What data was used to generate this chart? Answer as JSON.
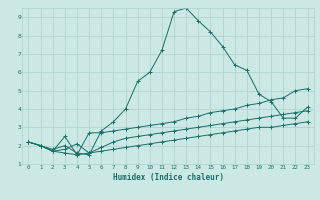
{
  "xlabel": "Humidex (Indice chaleur)",
  "ylabel": "",
  "bg_color": "#cce8e4",
  "grid_color": "#aad0cc",
  "line_color": "#1a6e68",
  "xlim": [
    -0.5,
    23.5
  ],
  "ylim": [
    1,
    9.5
  ],
  "xticks": [
    0,
    1,
    2,
    3,
    4,
    5,
    6,
    7,
    8,
    9,
    10,
    11,
    12,
    13,
    14,
    15,
    16,
    17,
    18,
    19,
    20,
    21,
    22,
    23
  ],
  "yticks": [
    1,
    2,
    3,
    4,
    5,
    6,
    7,
    8,
    9
  ],
  "series1_x": [
    0,
    1,
    2,
    3,
    4,
    5,
    6,
    7,
    8,
    9,
    10,
    11,
    12,
    13,
    14,
    15,
    16,
    17,
    18,
    19,
    20,
    21,
    22,
    23
  ],
  "series1_y": [
    2.2,
    2.0,
    1.8,
    2.0,
    1.6,
    1.5,
    2.8,
    3.3,
    4.0,
    5.5,
    6.0,
    7.2,
    9.3,
    9.5,
    8.8,
    8.2,
    7.4,
    6.4,
    6.1,
    4.8,
    4.4,
    3.5,
    3.5,
    4.1
  ],
  "series2_x": [
    0,
    1,
    2,
    3,
    4,
    5,
    6,
    7,
    8,
    9,
    10,
    11,
    12,
    13,
    14,
    15,
    16,
    17,
    18,
    19,
    20,
    21,
    22,
    23
  ],
  "series2_y": [
    2.2,
    2.0,
    1.7,
    2.5,
    1.5,
    2.7,
    2.7,
    2.8,
    2.9,
    3.0,
    3.1,
    3.2,
    3.3,
    3.5,
    3.6,
    3.8,
    3.9,
    4.0,
    4.2,
    4.3,
    4.5,
    4.6,
    5.0,
    5.1
  ],
  "series3_x": [
    0,
    1,
    2,
    3,
    4,
    5,
    6,
    7,
    8,
    9,
    10,
    11,
    12,
    13,
    14,
    15,
    16,
    17,
    18,
    19,
    20,
    21,
    22,
    23
  ],
  "series3_y": [
    2.2,
    2.0,
    1.7,
    1.8,
    2.1,
    1.6,
    1.9,
    2.2,
    2.4,
    2.5,
    2.6,
    2.7,
    2.8,
    2.9,
    3.0,
    3.1,
    3.2,
    3.3,
    3.4,
    3.5,
    3.6,
    3.7,
    3.8,
    3.9
  ],
  "series4_x": [
    0,
    1,
    2,
    3,
    4,
    5,
    6,
    7,
    8,
    9,
    10,
    11,
    12,
    13,
    14,
    15,
    16,
    17,
    18,
    19,
    20,
    21,
    22,
    23
  ],
  "series4_y": [
    2.2,
    2.0,
    1.7,
    1.6,
    1.5,
    1.6,
    1.7,
    1.8,
    1.9,
    2.0,
    2.1,
    2.2,
    2.3,
    2.4,
    2.5,
    2.6,
    2.7,
    2.8,
    2.9,
    3.0,
    3.0,
    3.1,
    3.2,
    3.3
  ]
}
